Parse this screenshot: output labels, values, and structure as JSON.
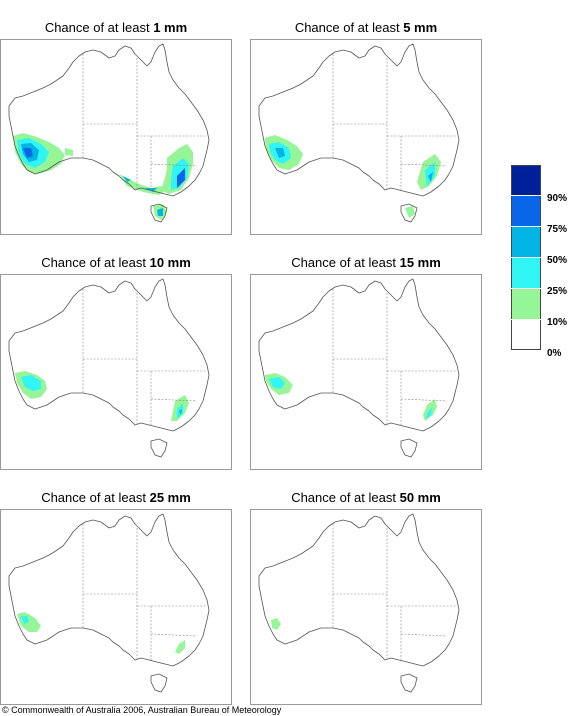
{
  "panels": [
    {
      "prefix": "Chance of at least ",
      "amount": "1 mm"
    },
    {
      "prefix": "Chance of at least ",
      "amount": "5 mm"
    },
    {
      "prefix": "Chance of at least ",
      "amount": "10 mm"
    },
    {
      "prefix": "Chance of at least ",
      "amount": "15 mm"
    },
    {
      "prefix": "Chance of at least ",
      "amount": "25 mm"
    },
    {
      "prefix": "Chance of at least ",
      "amount": "50 mm"
    }
  ],
  "legend": {
    "labels": [
      "90%",
      "75%",
      "50%",
      "25%",
      "10%",
      "0%"
    ],
    "colors": [
      "#00209a",
      "#0a66e8",
      "#00b4e6",
      "#31f5f5",
      "#96f596",
      "#ffffff"
    ]
  },
  "footer": {
    "copyright": "© Commonwealth of Australia 2006, Australian Bureau of Meteorology"
  }
}
